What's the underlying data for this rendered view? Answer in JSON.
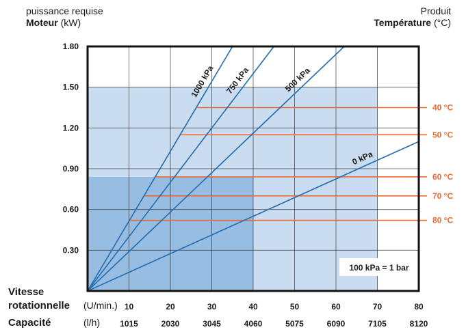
{
  "header_left": {
    "line1": "puissance requise",
    "line2_bold": "Moteur",
    "line2_unit": "(kW)"
  },
  "header_right": {
    "line1": "Produit",
    "line2_bold": "Température",
    "line2_unit": "(°C)"
  },
  "bottom_labels": {
    "speed_line1": "Vitesse",
    "speed_line2": "rotationnelle",
    "speed_unit": "(U/min.)",
    "capacity": "Capacité",
    "capacity_unit": "(l/h)"
  },
  "colors": {
    "line_blue": "#2a6fb0",
    "temp_orange": "#ef6a2e",
    "zone_light": "#c9dcf0",
    "zone_dark": "#97bde2",
    "grid": "#1c1c1c"
  },
  "chart_data": {
    "type": "line",
    "x_ticks": [
      10,
      20,
      30,
      40,
      50,
      60,
      70,
      80
    ],
    "capacity_ticks": [
      "1015",
      "2030",
      "3045",
      "4060",
      "5075",
      "6090",
      "7105",
      "8120"
    ],
    "y_ticks": [
      "1.80",
      "1.50",
      "1.20",
      "0.90",
      "0.60",
      "0.30"
    ],
    "xlim": [
      0,
      80
    ],
    "ylim": [
      0,
      1.8
    ],
    "zones": [
      {
        "x": [
          0,
          70
        ],
        "y": [
          0,
          1.5
        ],
        "level": "light"
      },
      {
        "x": [
          0,
          40
        ],
        "y": [
          0,
          0.84
        ],
        "level": "dark"
      }
    ],
    "series": [
      {
        "name": "1000 kPa",
        "x": [
          0,
          35
        ],
        "y": [
          0,
          1.8
        ]
      },
      {
        "name": "750 kPa",
        "x": [
          0,
          45
        ],
        "y": [
          0,
          1.8
        ]
      },
      {
        "name": "500 kPa",
        "x": [
          0,
          62
        ],
        "y": [
          0,
          1.8
        ]
      },
      {
        "name": "0 kPa",
        "x": [
          0,
          80
        ],
        "y": [
          0,
          1.1
        ]
      }
    ],
    "temperature_lines": [
      {
        "label": "40 °C",
        "y": 1.35,
        "x_start": 26.5
      },
      {
        "label": "50 °C",
        "y": 1.15,
        "x_start": 22.3
      },
      {
        "label": "60 °C",
        "y": 0.84,
        "x_start": 16.5
      },
      {
        "label": "70 °C",
        "y": 0.7,
        "x_start": 13.6
      },
      {
        "label": "80 °C",
        "y": 0.52,
        "x_start": 10.2
      }
    ],
    "annotation": "100 kPa = 1 bar"
  }
}
